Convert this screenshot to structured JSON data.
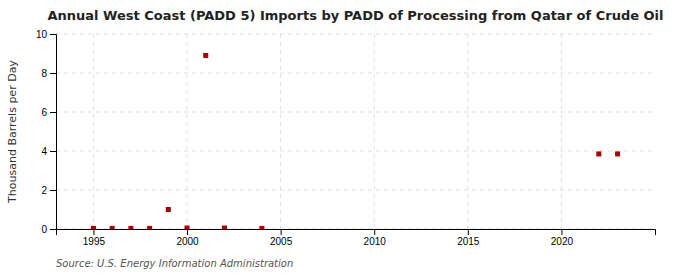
{
  "chart_data": {
    "type": "scatter",
    "title": "Annual West Coast (PADD 5) Imports by PADD of Processing from Qatar of Crude Oil",
    "ylabel": "Thousand Barrels per Day",
    "source": "Source: U.S. Energy Information Administration",
    "x": [
      1995,
      1996,
      1997,
      1998,
      1999,
      2000,
      2001,
      2002,
      2004,
      2022,
      2023
    ],
    "values": [
      0.03,
      0.03,
      0.03,
      0.03,
      1.0,
      0.05,
      8.9,
      0.05,
      0.03,
      3.85,
      3.85
    ],
    "color": "#aa0000",
    "marker": "square",
    "xlim": [
      1993,
      2025
    ],
    "ylim": [
      0,
      10
    ],
    "yticks": [
      0,
      2,
      4,
      6,
      8,
      10
    ],
    "xticks": [
      1995,
      2000,
      2005,
      2010,
      2015,
      2020
    ],
    "grid": true
  }
}
